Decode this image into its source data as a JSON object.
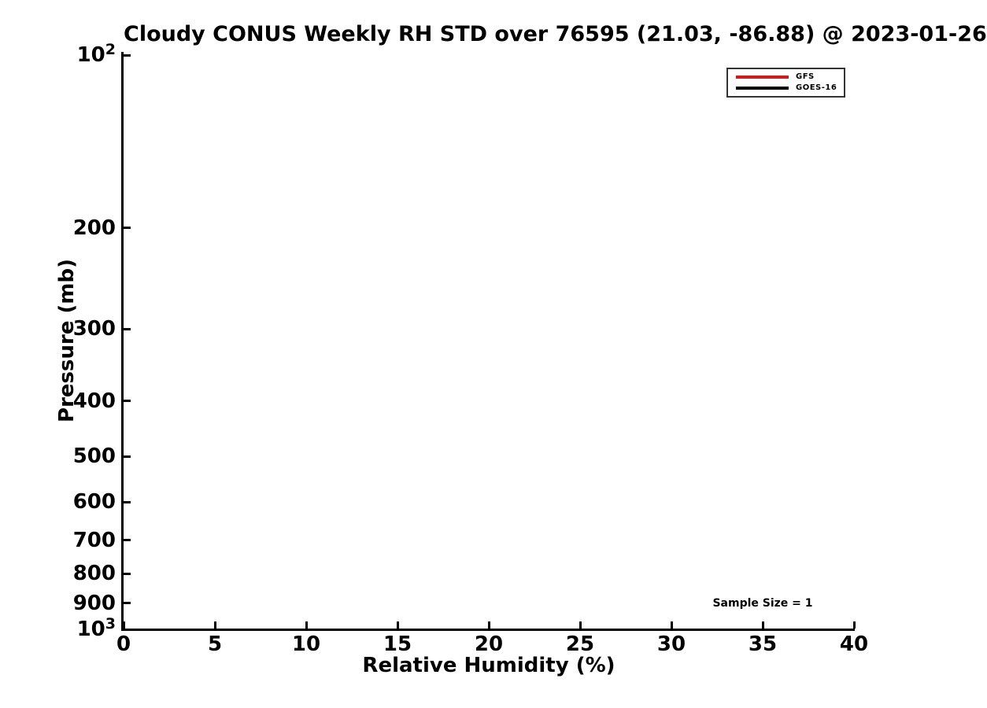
{
  "chart_data": {
    "type": "line",
    "title": "Cloudy CONUS Weekly RH STD over 76595 (21.03, -86.88) @ 2023-01-26",
    "xlabel": "Relative Humidity (%)",
    "ylabel": "Pressure (mb)",
    "xlim": [
      0,
      40
    ],
    "xticks": [
      0,
      5,
      10,
      15,
      20,
      25,
      30,
      35,
      40
    ],
    "yscale": "log",
    "ylim_top": 100,
    "ylim_bottom": 1000,
    "yticks": [
      {
        "value": 100,
        "base": "10",
        "exp": "2"
      },
      {
        "value": 200,
        "label": "200"
      },
      {
        "value": 300,
        "label": "300"
      },
      {
        "value": 400,
        "label": "400"
      },
      {
        "value": 500,
        "label": "500"
      },
      {
        "value": 600,
        "label": "600"
      },
      {
        "value": 700,
        "label": "700"
      },
      {
        "value": 800,
        "label": "800"
      },
      {
        "value": 900,
        "label": "900"
      },
      {
        "value": 1000,
        "base": "10",
        "exp": "3"
      }
    ],
    "grid": false,
    "legend_position": "upper-right",
    "series": [
      {
        "name": "GFS",
        "color": "#dd1515",
        "points": []
      },
      {
        "name": "GOES-16",
        "color": "#000000",
        "points": []
      }
    ],
    "annotations": [
      {
        "text": "Sample Size = 1",
        "x": 35,
        "y": 900
      }
    ]
  },
  "colors": {
    "axis": "#000000",
    "text": "#000000",
    "legend_border": "#333333",
    "background": "#ffffff"
  }
}
